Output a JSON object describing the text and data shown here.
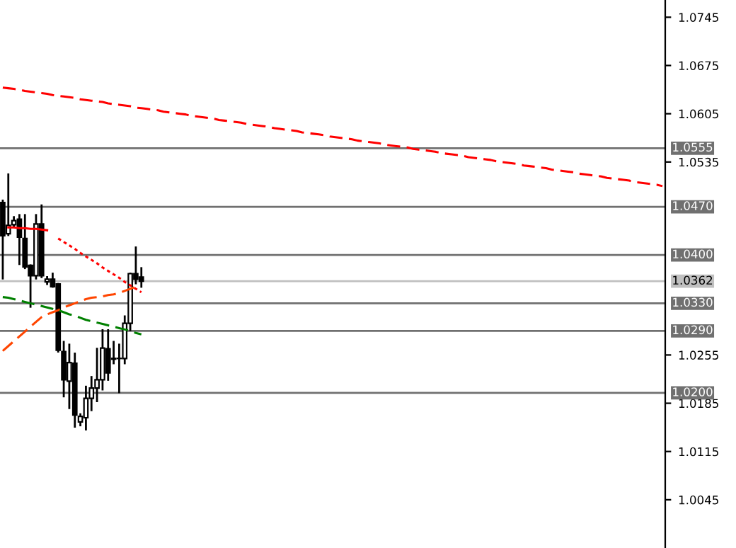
{
  "chart_data": {
    "type": "candlestick",
    "categories": [
      null,
      null,
      null,
      null,
      null,
      null,
      null,
      null,
      null,
      null,
      null,
      null,
      null,
      null,
      null,
      null,
      null,
      null,
      null,
      null,
      null,
      null,
      null,
      null,
      null,
      null,
      null,
      null,
      null,
      null,
      null,
      null,
      null,
      null,
      null,
      null,
      null,
      null,
      null,
      null,
      null,
      null,
      null,
      null,
      null,
      null,
      null,
      null,
      null,
      null,
      null,
      null,
      null,
      null,
      null,
      null,
      null,
      null,
      null,
      null,
      null,
      null,
      null,
      null,
      null,
      null,
      null,
      null,
      null,
      null,
      null,
      null,
      null,
      null,
      null,
      null,
      null,
      null,
      null,
      null,
      null,
      null,
      null,
      null,
      null,
      null,
      null,
      null,
      null,
      null,
      null,
      null,
      null,
      null,
      null,
      null,
      null,
      null,
      null,
      null,
      null,
      null,
      null,
      null,
      null,
      null,
      null,
      null,
      null,
      null,
      null,
      null,
      null,
      null,
      null,
      null,
      null,
      null,
      null,
      null
    ],
    "ohlc": [
      [
        1.0476,
        1.0479,
        1.0366,
        1.0428
      ],
      [
        1.0431,
        1.0517,
        1.0429,
        1.0443
      ],
      [
        1.0444,
        1.0455,
        1.0441,
        1.045
      ],
      [
        1.0452,
        1.0458,
        1.0387,
        1.0426
      ],
      [
        1.0424,
        1.0458,
        1.0381,
        1.0383
      ],
      [
        1.0385,
        1.0385,
        1.0325,
        1.037
      ],
      [
        1.037,
        1.0458,
        1.0366,
        1.0445
      ],
      [
        1.0445,
        1.0472,
        1.0368,
        1.037
      ],
      [
        1.0361,
        1.0368,
        1.0358,
        1.0365
      ],
      [
        1.0365,
        1.0373,
        1.0354,
        1.0354
      ],
      [
        1.0358,
        1.0358,
        1.026,
        1.0262
      ],
      [
        1.026,
        1.0274,
        1.0195,
        1.0219
      ],
      [
        1.0217,
        1.027,
        1.0178,
        1.0244
      ],
      [
        1.0243,
        1.0257,
        1.0151,
        1.0168
      ],
      [
        1.0158,
        1.0169,
        1.0153,
        1.0166
      ],
      [
        1.0164,
        1.0209,
        1.0147,
        1.0192
      ],
      [
        1.0192,
        1.0223,
        1.0175,
        1.0207
      ],
      [
        1.0207,
        1.0264,
        1.0188,
        1.0219
      ],
      [
        1.0219,
        1.0291,
        1.0205,
        1.0265
      ],
      [
        1.0264,
        1.0291,
        1.0219,
        1.0229
      ],
      [
        1.025,
        1.0274,
        1.0243,
        1.0249
      ],
      [
        1.025,
        1.027,
        1.0201,
        1.025
      ],
      [
        1.025,
        1.0311,
        1.0243,
        1.0301
      ],
      [
        1.0301,
        1.0373,
        1.0291,
        1.0373
      ],
      [
        1.0373,
        1.0411,
        1.0359,
        1.0365
      ],
      [
        1.0368,
        1.0381,
        1.0354,
        1.0362
      ],
      null,
      null,
      null,
      null,
      null,
      null,
      null,
      null,
      null,
      null,
      null,
      null,
      null,
      null,
      null,
      null,
      null,
      null,
      null,
      null,
      null,
      null,
      null,
      null,
      null,
      null,
      null,
      null,
      null,
      null,
      null,
      null,
      null,
      null,
      null,
      null,
      null,
      null,
      null,
      null,
      null,
      null,
      null,
      null,
      null,
      null,
      null,
      null,
      null,
      null,
      null,
      null,
      null,
      null,
      null,
      null,
      null,
      null,
      null,
      null,
      null,
      null,
      null,
      null,
      null,
      null,
      null,
      null,
      null,
      null,
      null,
      null,
      null,
      null,
      null,
      null,
      null,
      null,
      null,
      null,
      null,
      null,
      null,
      null,
      null,
      null,
      null,
      null,
      null,
      null,
      null,
      null,
      null,
      null
    ],
    "series": [
      {
        "type": "line",
        "color": "#ff0000",
        "line_style": "dashed",
        "values": [
          1.0643,
          1.0642,
          1.0641,
          1.064,
          1.0638,
          1.0637,
          1.0636,
          1.0635,
          1.0634,
          1.0632,
          1.0631,
          1.063,
          1.0629,
          1.0628,
          1.0626,
          1.0625,
          1.0624,
          1.0623,
          1.0622,
          1.062,
          1.0619,
          1.0618,
          1.0617,
          1.0616,
          1.0614,
          1.0613,
          1.0612,
          1.0611,
          1.061,
          1.0608,
          1.0607,
          1.0606,
          1.0605,
          1.0604,
          1.0602,
          1.0601,
          1.06,
          1.0599,
          1.0598,
          1.0596,
          1.0595,
          1.0594,
          1.0593,
          1.0592,
          1.059,
          1.0589,
          1.0588,
          1.0587,
          1.0586,
          1.0584,
          1.0583,
          1.0582,
          1.0581,
          1.058,
          1.0578,
          1.0577,
          1.0576,
          1.0575,
          1.0574,
          1.0572,
          1.0571,
          1.057,
          1.0569,
          1.0568,
          1.0566,
          1.0565,
          1.0564,
          1.0563,
          1.0562,
          1.056,
          1.0559,
          1.0558,
          1.0557,
          1.0556,
          1.0554,
          1.0553,
          1.0552,
          1.0551,
          1.055,
          1.0548,
          1.0547,
          1.0546,
          1.0545,
          1.0544,
          1.0542,
          1.0541,
          1.054,
          1.0539,
          1.0538,
          1.0536,
          1.0535,
          1.0534,
          1.0533,
          1.0532,
          1.053,
          1.0529,
          1.0528,
          1.0527,
          1.0526,
          1.0524,
          1.0523,
          1.0522,
          1.0521,
          1.052,
          1.0518,
          1.0517,
          1.0516,
          1.0515,
          1.0514,
          1.0512,
          1.0511,
          1.051,
          1.0509,
          1.0508,
          1.0506,
          1.0505,
          1.0504,
          1.0503,
          1.0502,
          1.05
        ]
      },
      {
        "type": "line",
        "color": "#ff0000",
        "line_style": "solid",
        "values": [
          null,
          1.044,
          1.044,
          1.0439,
          1.0439,
          1.0438,
          1.0438,
          1.0437,
          1.0436,
          null,
          null,
          null,
          null,
          null,
          null,
          null,
          null,
          null,
          null,
          null,
          null,
          null,
          null,
          null,
          null,
          null,
          null,
          null,
          null,
          null,
          null,
          null,
          null,
          null,
          null,
          null,
          null,
          null,
          null,
          null,
          null,
          null,
          null,
          null,
          null,
          null,
          null,
          null,
          null,
          null,
          null,
          null,
          null,
          null,
          null,
          null,
          null,
          null,
          null,
          null,
          null,
          null,
          null,
          null,
          null,
          null,
          null,
          null,
          null,
          null,
          null,
          null,
          null,
          null,
          null,
          null,
          null,
          null,
          null,
          null,
          null,
          null,
          null,
          null,
          null,
          null,
          null,
          null,
          null,
          null,
          null,
          null,
          null,
          null,
          null,
          null,
          null,
          null,
          null,
          null,
          null,
          null,
          null,
          null,
          null,
          null,
          null,
          null,
          null,
          null,
          null,
          null,
          null,
          null,
          null,
          null,
          null,
          null,
          null,
          null
        ]
      },
      {
        "type": "line",
        "color": "#ff0000",
        "line_style": "dotted",
        "values": [
          null,
          null,
          null,
          null,
          null,
          null,
          null,
          null,
          null,
          null,
          1.0424,
          1.0419,
          1.0414,
          1.0409,
          1.0403,
          1.0398,
          1.0393,
          1.0388,
          1.0382,
          1.0377,
          1.0372,
          1.0367,
          1.0361,
          1.0356,
          1.0351,
          1.0346,
          null,
          null,
          null,
          null,
          null,
          null,
          null,
          null,
          null,
          null,
          null,
          null,
          null,
          null,
          null,
          null,
          null,
          null,
          null,
          null,
          null,
          null,
          null,
          null,
          null,
          null,
          null,
          null,
          null,
          null,
          null,
          null,
          null,
          null,
          null,
          null,
          null,
          null,
          null,
          null,
          null,
          null,
          null,
          null,
          null,
          null,
          null,
          null,
          null,
          null,
          null,
          null,
          null,
          null,
          null,
          null,
          null,
          null,
          null,
          null,
          null,
          null,
          null,
          null,
          null,
          null,
          null,
          null,
          null,
          null,
          null,
          null,
          null,
          null,
          null,
          null,
          null,
          null,
          null,
          null,
          null,
          null,
          null,
          null,
          null,
          null,
          null,
          null,
          null,
          null,
          null,
          null,
          null,
          null
        ]
      },
      {
        "type": "line",
        "color": "#ff4500",
        "line_style": "dashed",
        "values": [
          1.0261,
          1.0268,
          1.0275,
          1.0282,
          1.0289,
          1.0296,
          1.0303,
          1.031,
          1.0314,
          1.0317,
          1.032,
          1.0324,
          1.0327,
          1.033,
          1.0333,
          1.0336,
          1.0338,
          1.0339,
          1.034,
          1.0342,
          1.0343,
          1.0345,
          1.0348,
          1.0351,
          1.0354,
          null,
          null,
          null,
          null,
          null,
          null,
          null,
          null,
          null,
          null,
          null,
          null,
          null,
          null,
          null,
          null,
          null,
          null,
          null,
          null,
          null,
          null,
          null,
          null,
          null,
          null,
          null,
          null,
          null,
          null,
          null,
          null,
          null,
          null,
          null,
          null,
          null,
          null,
          null,
          null,
          null,
          null,
          null,
          null,
          null,
          null,
          null,
          null,
          null,
          null,
          null,
          null,
          null,
          null,
          null,
          null,
          null,
          null,
          null,
          null,
          null,
          null,
          null,
          null,
          null,
          null,
          null,
          null,
          null,
          null,
          null,
          null,
          null,
          null,
          null,
          null,
          null,
          null,
          null,
          null,
          null,
          null,
          null,
          null,
          null,
          null,
          null,
          null,
          null,
          null,
          null,
          null,
          null,
          null,
          null
        ]
      },
      {
        "type": "line",
        "color": "#008000",
        "line_style": "dashed",
        "values": [
          1.0339,
          1.0338,
          1.0336,
          1.0334,
          1.0332,
          1.033,
          1.0328,
          1.0326,
          1.0324,
          1.0322,
          1.032,
          1.0317,
          1.0314,
          1.0312,
          1.0309,
          1.0306,
          1.0304,
          1.0302,
          1.03,
          1.0298,
          1.0296,
          1.0294,
          1.0292,
          1.029,
          1.0287,
          1.0285,
          null,
          null,
          null,
          null,
          null,
          null,
          null,
          null,
          null,
          null,
          null,
          null,
          null,
          null,
          null,
          null,
          null,
          null,
          null,
          null,
          null,
          null,
          null,
          null,
          null,
          null,
          null,
          null,
          null,
          null,
          null,
          null,
          null,
          null,
          null,
          null,
          null,
          null,
          null,
          null,
          null,
          null,
          null,
          null,
          null,
          null,
          null,
          null,
          null,
          null,
          null,
          null,
          null,
          null,
          null,
          null,
          null,
          null,
          null,
          null,
          null,
          null,
          null,
          null,
          null,
          null,
          null,
          null,
          null,
          null,
          null,
          null,
          null,
          null,
          null,
          null,
          null,
          null,
          null,
          null,
          null,
          null,
          null,
          null,
          null,
          null,
          null,
          null,
          null,
          null,
          null,
          null,
          null,
          null
        ]
      }
    ],
    "ylim": [
      0.9975,
      1.077
    ],
    "yticks": [
      1.0745,
      1.0675,
      1.0605,
      1.0535,
      1.0255,
      1.0185,
      1.0115,
      1.0045
    ],
    "tick_labels": "y",
    "ref_lines": [
      {
        "axis": "y",
        "value": 1.0555,
        "label": "1.0555",
        "color": "#707070"
      },
      {
        "axis": "y",
        "value": 1.047,
        "label": "1.0470",
        "color": "#707070"
      },
      {
        "axis": "y",
        "value": 1.04,
        "label": "1.0400",
        "color": "#707070"
      },
      {
        "axis": "y",
        "value": 1.0362,
        "label": "1.0362",
        "color": "#c0c0c0"
      },
      {
        "axis": "y",
        "value": 1.033,
        "label": "1.0330",
        "color": "#707070"
      },
      {
        "axis": "y",
        "value": 1.029,
        "label": "1.0290",
        "color": "#707070"
      },
      {
        "axis": "y",
        "value": 1.02,
        "label": "1.0200",
        "color": "#707070"
      }
    ],
    "grid": false,
    "legend": false
  }
}
